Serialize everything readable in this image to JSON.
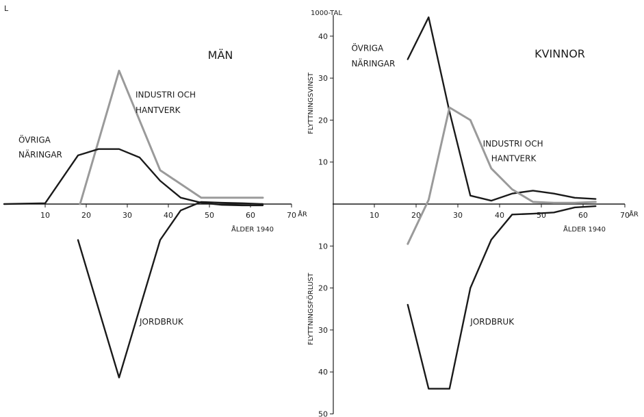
{
  "colors": {
    "ink": "#1a1a1a",
    "gray": "#9a9a9a",
    "paper": "#ffffff"
  },
  "chart_data": [
    {
      "type": "line",
      "title": "MÄN",
      "xlabel": "ÅLDER 1940",
      "x_unit": "ÅR",
      "x_ticks": [
        10,
        20,
        30,
        40,
        50,
        60,
        70
      ],
      "xlim": [
        0,
        70
      ],
      "ylim": [
        -41,
        41
      ],
      "grid": false,
      "series": [
        {
          "name": "INDUSTRI OCH HANTVERK",
          "color": "gray",
          "x": [
            18.5,
            28,
            38,
            48,
            63
          ],
          "y": [
            0,
            31.5,
            8,
            1.5,
            1.5
          ]
        },
        {
          "name": "ÖVRIGA NÄRINGAR",
          "color": "ink",
          "x": [
            0,
            10,
            18,
            23,
            28,
            33,
            38,
            43,
            48,
            53,
            58,
            63
          ],
          "y": [
            0,
            0.2,
            11.5,
            13,
            13,
            11,
            5.5,
            1.5,
            0.3,
            -0.2,
            -0.3,
            -0.3
          ]
        },
        {
          "name": "JORDBRUK",
          "color": "ink",
          "x": [
            18,
            28,
            38,
            43,
            48,
            53,
            58,
            63
          ],
          "y": [
            -8.5,
            -41,
            -8.5,
            -1.5,
            0.5,
            0.3,
            0.2,
            0
          ]
        }
      ],
      "labels": {
        "industri_1": "INDUSTRI OCH",
        "industri_2": "HANTVERK",
        "ovriga_1": "ÖVRIGA",
        "ovriga_2": "NÄRINGAR",
        "jordbruk": "JORDBRUK"
      }
    },
    {
      "type": "line",
      "title": "KVINNOR",
      "xlabel": "ÅLDER 1940",
      "x_unit": "ÅR",
      "y_unit": "1000-TAL",
      "ylabel_top": "FLYTTNINGSVINST",
      "ylabel_bottom": "FLYTTNINGSFÖRLUST",
      "x_ticks": [
        10,
        20,
        30,
        40,
        50,
        60,
        70
      ],
      "y_ticks_top": [
        10,
        20,
        30,
        40
      ],
      "y_ticks_bottom": [
        10,
        20,
        30,
        40,
        50
      ],
      "xlim": [
        0,
        70
      ],
      "ylim": [
        -50,
        45
      ],
      "grid": false,
      "series": [
        {
          "name": "ÖVRIGA NÄRINGAR",
          "color": "ink",
          "x": [
            18,
            23,
            28,
            33,
            38,
            43,
            48,
            53,
            58,
            63
          ],
          "y": [
            34.5,
            44.5,
            22,
            2,
            0.8,
            2.5,
            3.2,
            2.5,
            1.5,
            1.2
          ]
        },
        {
          "name": "INDUSTRI OCH HANTVERK",
          "color": "gray",
          "x": [
            18,
            23,
            28,
            33,
            38,
            43,
            48,
            53,
            58,
            63
          ],
          "y": [
            -9.5,
            1,
            23,
            20,
            8.5,
            3.5,
            0.5,
            0.3,
            0.3,
            0.5
          ]
        },
        {
          "name": "JORDBRUK",
          "color": "ink",
          "x": [
            18,
            23,
            28,
            33,
            38,
            43,
            48,
            53,
            58,
            63
          ],
          "y": [
            -24,
            -44,
            -44,
            -20,
            -8.5,
            -2.5,
            -2.3,
            -2,
            -0.8,
            -0.5
          ]
        }
      ],
      "labels": {
        "ovriga_1": "ÖVRIGA",
        "ovriga_2": "NÄRINGAR",
        "industri_1": "INDUSTRI OCH",
        "industri_2": "HANTVERK",
        "jordbruk": "JORDBRUK"
      }
    }
  ],
  "corner_mark": "L"
}
